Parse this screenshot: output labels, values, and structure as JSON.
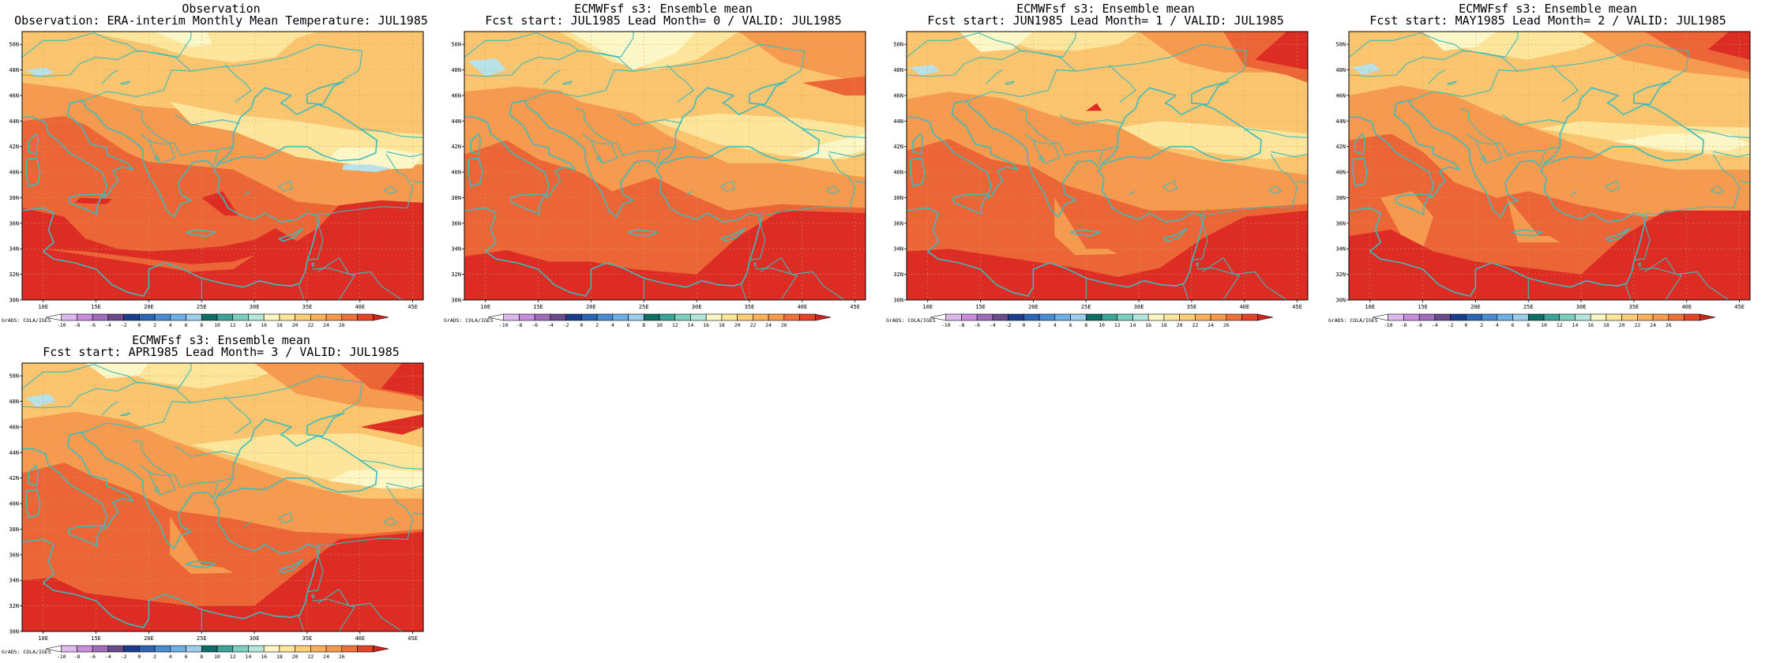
{
  "panels": [
    {
      "title_line1": "Observation",
      "title_line2": "Observation: ERA-interim Monthly Mean Temperature: JUL1985"
    },
    {
      "title_line1": "ECMWFsf s3: Ensemble mean",
      "title_line2": "Fcst start: JUL1985  Lead Month= 0 / VALID: JUL1985"
    },
    {
      "title_line1": "ECMWFsf s3: Ensemble mean",
      "title_line2": "Fcst start: JUN1985  Lead Month= 1 / VALID: JUL1985"
    },
    {
      "title_line1": "ECMWFsf s3: Ensemble mean",
      "title_line2": "Fcst start: MAY1985  Lead Month= 2 / VALID: JUL1985"
    },
    {
      "title_line1": "ECMWFsf s3: Ensemble mean",
      "title_line2": "Fcst start: APR1985  Lead Month= 3 / VALID: JUL1985"
    }
  ],
  "lat_labels": [
    "50N",
    "48N",
    "46N",
    "44N",
    "42N",
    "40N",
    "38N",
    "36N",
    "34N",
    "32N",
    "30N"
  ],
  "lon_labels": [
    "10E",
    "15E",
    "20E",
    "25E",
    "30E",
    "35E",
    "40E",
    "45E"
  ],
  "colorbar": {
    "credit": "GrADS: COLA/IGES",
    "tick_labels": [
      "-10",
      "-8",
      "-6",
      "-4",
      "-2",
      "0",
      "2",
      "4",
      "6",
      "8",
      "10",
      "12",
      "14",
      "16",
      "18",
      "20",
      "22",
      "24",
      "26"
    ],
    "colors": [
      "#ffffff",
      "#e0b8ee",
      "#c88ddc",
      "#a06cbc",
      "#6a4a8a",
      "#1e3c8e",
      "#2e64b4",
      "#4a8cd2",
      "#6eb0e4",
      "#9ccdec",
      "#0e6e66",
      "#3ca496",
      "#7ccebe",
      "#b4e6dc",
      "#fff6c4",
      "#fee69a",
      "#fdcf74",
      "#fbb05a",
      "#f89a4c",
      "#f0703a",
      "#e24428",
      "#cc2420"
    ]
  },
  "map_colors": {
    "coast": "#3cbcbc",
    "t16": "#b8e2ea",
    "t18": "#fdf7c8",
    "t20": "#fde69c",
    "t22": "#fbc46e",
    "t24": "#f59a4e",
    "t26": "#ec6536",
    "t28": "#dc2c24"
  }
}
